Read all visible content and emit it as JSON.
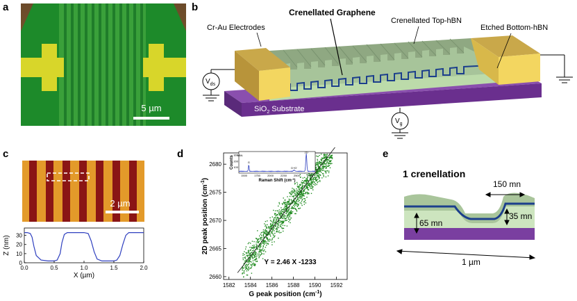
{
  "panels": {
    "a": {
      "letter": "a",
      "scale_bar": "5 µm"
    },
    "b": {
      "letter": "b",
      "title": "Crenellated Graphene",
      "labels": {
        "electrodes": "Cr-Au Electrodes",
        "top_hbn": "Crenellated Top-hBN",
        "bottom_hbn": "Etched Bottom-hBN",
        "substrate": "SiO",
        "substrate_sub": "2",
        "substrate_rest": " Substrate",
        "vds": "V",
        "vds_sub": "ds",
        "vg": "V",
        "vg_sub": "g"
      }
    },
    "c": {
      "letter": "c",
      "scale_bar": "2 µm"
    },
    "d": {
      "letter": "d",
      "fit_label": "Y = 2.46 X -1233"
    },
    "e": {
      "letter": "e",
      "title": "1 crenellation",
      "width_label": "150 mn",
      "height_label": "65 mn",
      "depth_label": "35 mn",
      "length_label": "1 µm"
    }
  },
  "chart_data": [
    {
      "type": "line",
      "panel": "c",
      "title": "",
      "xlabel": "X (µm)",
      "ylabel": "Z (nm)",
      "xlim": [
        0,
        2.0
      ],
      "ylim": [
        0,
        35
      ],
      "xticks": [
        "0.0",
        "0.5",
        "1.0",
        "1.5",
        "2.0"
      ],
      "yticks": [
        "0",
        "10",
        "20",
        "30"
      ],
      "series": [
        {
          "name": "height profile",
          "x": [
            0,
            0.05,
            0.1,
            0.13,
            0.16,
            0.2,
            0.28,
            0.4,
            0.5,
            0.55,
            0.6,
            0.63,
            0.67,
            0.72,
            0.8,
            0.9,
            1.0,
            1.07,
            1.12,
            1.17,
            1.22,
            1.3,
            1.4,
            1.5,
            1.55,
            1.6,
            1.65,
            1.7,
            1.75,
            1.8,
            1.9,
            2.0
          ],
          "y": [
            33,
            33,
            32,
            28,
            18,
            8,
            3,
            2,
            2,
            3,
            10,
            22,
            31,
            33,
            33,
            33,
            33,
            32,
            24,
            12,
            4,
            2,
            2,
            2,
            3,
            8,
            20,
            30,
            33,
            33,
            33,
            33
          ]
        }
      ]
    },
    {
      "type": "scatter",
      "panel": "d",
      "title": "",
      "xlabel": "G peak position (cm",
      "xlabel_sup": "-1",
      "xlabel_end": ")",
      "ylabel": "2D peak position (cm",
      "ylabel_sup": "-1",
      "ylabel_end": ")",
      "xlim": [
        1581.5,
        1593
      ],
      "ylim": [
        2659.5,
        2682
      ],
      "xticks": [
        "1582",
        "1584",
        "1586",
        "1588",
        "1590",
        "1592"
      ],
      "yticks": [
        "2660",
        "2665",
        "2670",
        "2675",
        "2680"
      ],
      "fit": {
        "slope": 2.46,
        "intercept": -1233,
        "label": "Y = 2.46 X -1233"
      },
      "inset": {
        "xlabel": "Raman Shift (cm",
        "xlabel_sup": "-1",
        "xlabel_end": ")",
        "ylabel": "Counts",
        "xticks": [
          "1500",
          "1750",
          "2000",
          "2250",
          "2500",
          "2750"
        ],
        "yticks": [
          "100",
          "200",
          "300"
        ],
        "peaks": [
          "hBN",
          "G",
          "D+D'",
          "2D"
        ]
      }
    }
  ]
}
